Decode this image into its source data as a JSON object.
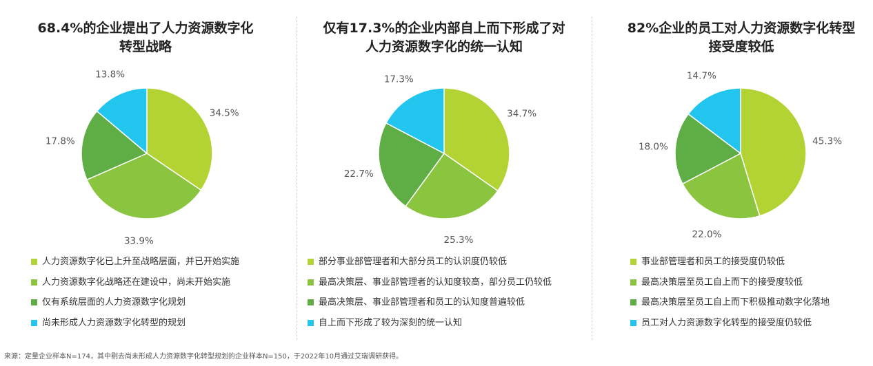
{
  "colors": [
    "#b3d334",
    "#8bc53f",
    "#5fae45",
    "#22c5ee"
  ],
  "chart_data": [
    {
      "type": "pie",
      "title": [
        "68.4%的企业提出了人力资源数字化",
        "转型战略"
      ],
      "categories": [
        "人力资源数字化已上升至战略层面，并已开始实施",
        "人力资源数字化战略还在建设中，尚未开始实施",
        "仅有系统层面的人力资源数字化规划",
        "尚未形成人力资源数字化转型的规划"
      ],
      "values": [
        34.5,
        33.9,
        17.8,
        13.8
      ],
      "labels": [
        "34.5%",
        "33.9%",
        "17.8%",
        "13.8%"
      ]
    },
    {
      "type": "pie",
      "title": [
        "仅有17.3%的企业内部自上而下形成了对",
        "人力资源数字化的统一认知"
      ],
      "categories": [
        "部分事业部管理者和大部分员工的认识度仍较低",
        "最高决策层、事业部管理者的认知度较高，部分员工仍较低",
        "最高决策层、事业部管理者和员工的认知度普遍较低",
        "自上而下形成了较为深刻的统一认知"
      ],
      "values": [
        34.7,
        25.3,
        22.7,
        17.3
      ],
      "labels": [
        "34.7%",
        "25.3%",
        "22.7%",
        "17.3%"
      ]
    },
    {
      "type": "pie",
      "title": [
        "82%企业的员工对人力资源数字化转型",
        "接受度较低"
      ],
      "categories": [
        "事业部管理者和员工的接受度仍较低",
        "最高决策层至员工自上而下的接受度较低",
        "最高决策层至员工自上而下积极推动数字化落地",
        "员工对人力资源数字化转型的接受度仍较低"
      ],
      "values": [
        45.3,
        22.0,
        18.0,
        14.7
      ],
      "labels": [
        "45.3%",
        "22.0%",
        "18.0%",
        "14.7%"
      ]
    }
  ],
  "source": "来源：定量企业样本N=174，其中剔去尚未形成人力资源数字化转型规划的企业样本N=150，于2022年10月通过艾瑞调研获得。"
}
